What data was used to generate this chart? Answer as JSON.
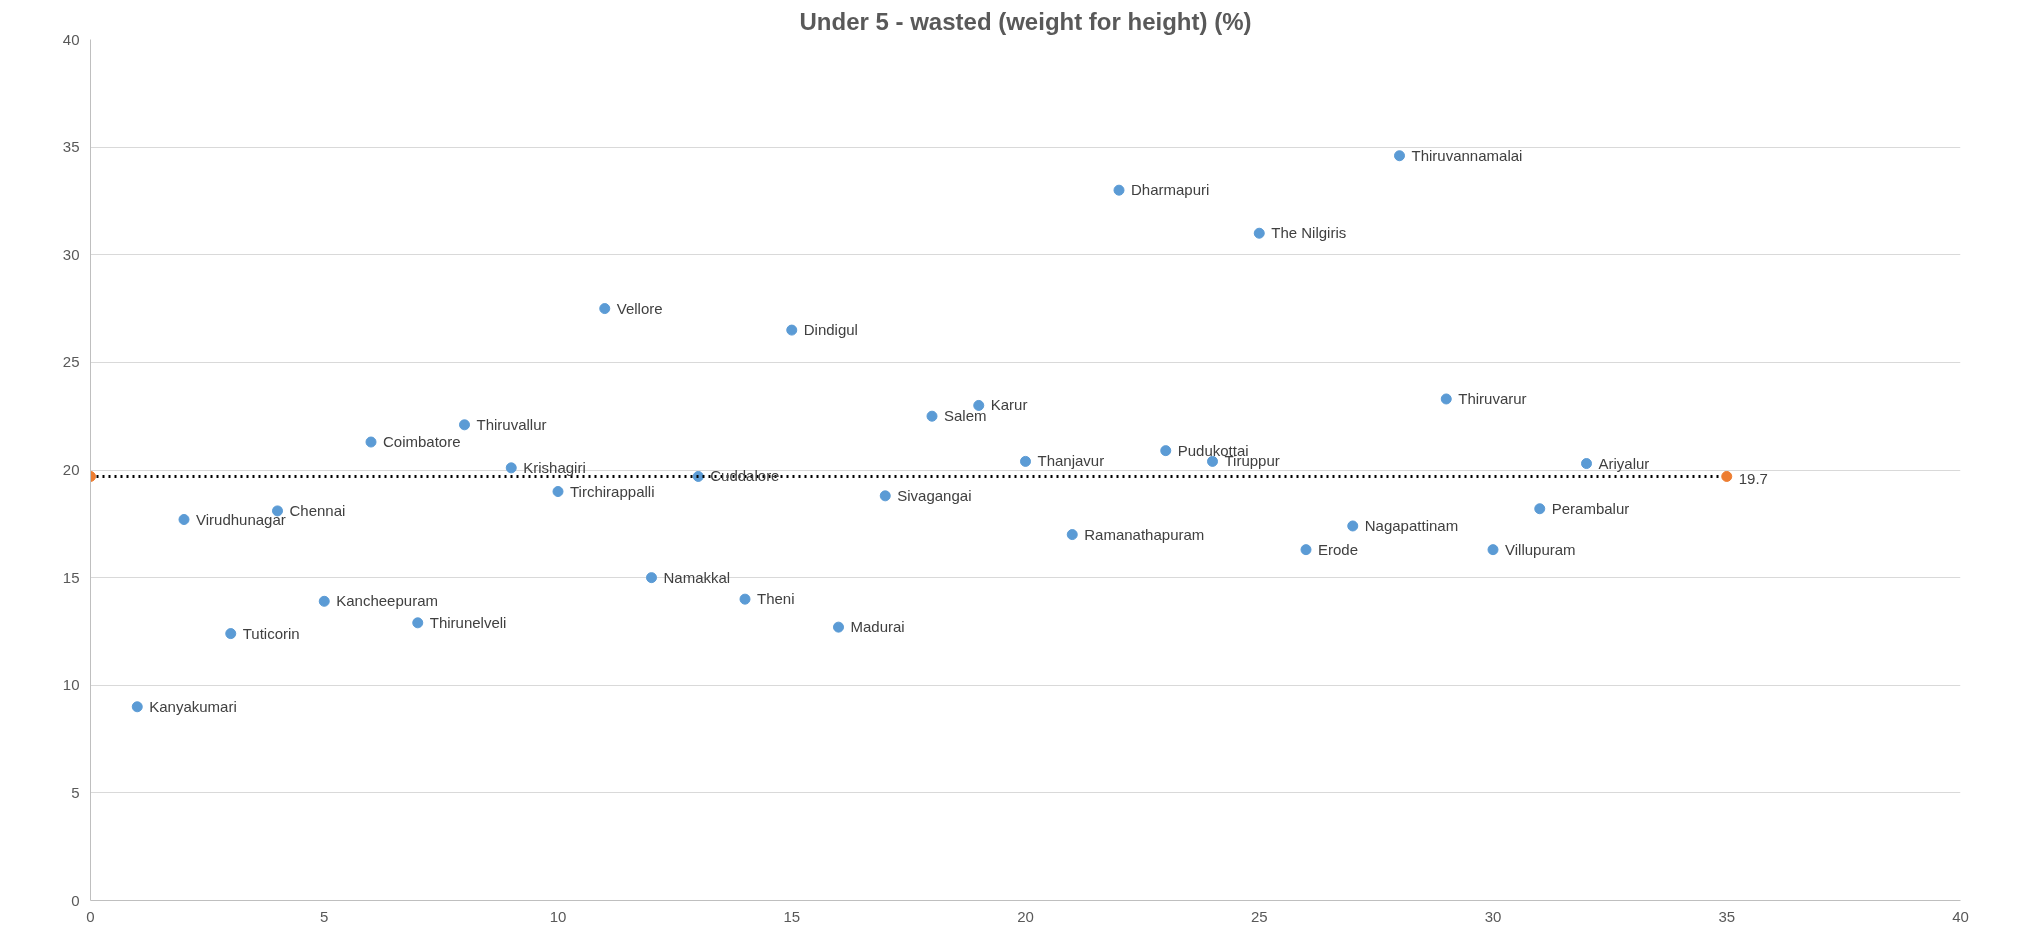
{
  "chart_data": {
    "type": "scatter",
    "title": "Under 5 - wasted (weight for height) (%)",
    "xlim": [
      0,
      40
    ],
    "xticks": [
      0,
      5,
      10,
      15,
      20,
      25,
      30,
      35,
      40
    ],
    "ylim": [
      0,
      40
    ],
    "yticks": [
      0,
      5,
      10,
      15,
      20,
      25,
      30,
      35,
      40
    ],
    "grid": "y",
    "marker": "circle",
    "series": [
      {
        "color": "#5b9bd5",
        "x": [
          1,
          2,
          3,
          4,
          5,
          6,
          7,
          8,
          9,
          10,
          11,
          12,
          13,
          14,
          15,
          16,
          17,
          18,
          19,
          20,
          21,
          22,
          23,
          24,
          25,
          26,
          27,
          28,
          29,
          30,
          31,
          32
        ],
        "values": [
          9.0,
          17.7,
          12.4,
          18.1,
          13.9,
          21.3,
          12.9,
          22.1,
          20.1,
          19.0,
          27.5,
          15.0,
          19.7,
          14.0,
          26.5,
          12.7,
          18.8,
          22.5,
          23.0,
          20.4,
          17.0,
          33.0,
          20.9,
          20.4,
          31.0,
          16.3,
          17.4,
          34.6,
          23.3,
          16.3,
          18.2,
          20.3
        ]
      },
      {
        "type": "line",
        "color": "#000000",
        "line_style": "dotted",
        "marker": "none",
        "x": [
          0,
          35
        ],
        "values": [
          19.7,
          19.7
        ]
      },
      {
        "color": "#ed7d31",
        "x": [
          0,
          35
        ],
        "values": [
          19.7,
          19.7
        ],
        "value_labels": [
          null,
          "19.7"
        ]
      }
    ],
    "annotations": [
      {
        "text": "Kanyakumari",
        "x": 1,
        "y": 9.0
      },
      {
        "text": "Virudhunagar",
        "x": 2,
        "y": 17.7
      },
      {
        "text": "Tuticorin",
        "x": 3,
        "y": 12.4
      },
      {
        "text": "Chennai",
        "x": 4,
        "y": 18.1
      },
      {
        "text": "Kancheepuram",
        "x": 5,
        "y": 13.9
      },
      {
        "text": "Coimbatore",
        "x": 6,
        "y": 21.3
      },
      {
        "text": "Thirunelveli",
        "x": 7,
        "y": 12.9
      },
      {
        "text": "Thiruvallur",
        "x": 8,
        "y": 22.1
      },
      {
        "text": "Krishagiri",
        "x": 9,
        "y": 20.1
      },
      {
        "text": "Tirchirappalli",
        "x": 10,
        "y": 19.0
      },
      {
        "text": "Vellore",
        "x": 11,
        "y": 27.5
      },
      {
        "text": "Namakkal",
        "x": 12,
        "y": 15.0
      },
      {
        "text": "Cuddalore",
        "x": 13,
        "y": 19.7
      },
      {
        "text": "Theni",
        "x": 14,
        "y": 14.0
      },
      {
        "text": "Dindigul",
        "x": 15,
        "y": 26.5
      },
      {
        "text": "Madurai",
        "x": 16,
        "y": 12.7
      },
      {
        "text": "Sivagangai",
        "x": 17,
        "y": 18.8
      },
      {
        "text": "Salem",
        "x": 18,
        "y": 22.5
      },
      {
        "text": "Karur",
        "x": 19,
        "y": 23.0
      },
      {
        "text": "Thanjavur",
        "x": 20,
        "y": 20.4
      },
      {
        "text": "Ramanathapuram",
        "x": 21,
        "y": 17.0
      },
      {
        "text": "Dharmapuri",
        "x": 22,
        "y": 33.0
      },
      {
        "text": "Pudukottai",
        "x": 23,
        "y": 20.9
      },
      {
        "text": "Tiruppur",
        "x": 24,
        "y": 20.4
      },
      {
        "text": "The Nilgiris",
        "x": 25,
        "y": 31.0
      },
      {
        "text": "Erode",
        "x": 26,
        "y": 16.3
      },
      {
        "text": "Nagapattinam",
        "x": 27,
        "y": 17.4
      },
      {
        "text": "Thiruvannamalai",
        "x": 28,
        "y": 34.6
      },
      {
        "text": "Thiruvarur",
        "x": 29,
        "y": 23.3
      },
      {
        "text": "Villupuram",
        "x": 30,
        "y": 16.3
      },
      {
        "text": "Perambalur",
        "x": 31,
        "y": 18.2
      },
      {
        "text": "Ariyalur",
        "x": 32,
        "y": 20.3
      }
    ]
  }
}
